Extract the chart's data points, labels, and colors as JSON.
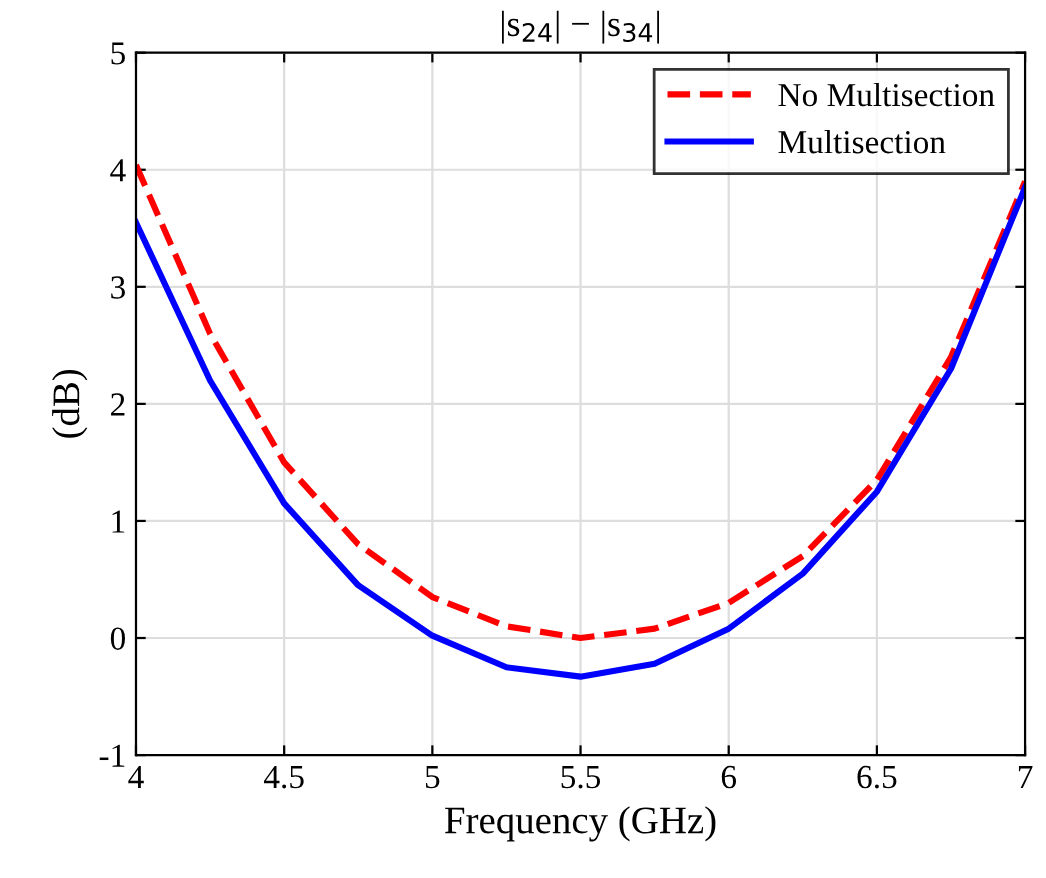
{
  "chart_data": {
    "type": "line",
    "title": "|s$_{24}$| − |s$_{34}$|",
    "xlabel": "Frequency (GHz)",
    "ylabel": "(dB)",
    "x": [
      4,
      4.25,
      4.5,
      4.75,
      5,
      5.25,
      5.5,
      5.75,
      6,
      6.25,
      6.5,
      6.75,
      7
    ],
    "series": [
      {
        "name": "No Multisection",
        "color": "#ff0000",
        "line_style": "dashed",
        "values": [
          4.04,
          2.6,
          1.5,
          0.8,
          0.35,
          0.1,
          0.0,
          0.08,
          0.3,
          0.7,
          1.35,
          2.4,
          3.9
        ]
      },
      {
        "name": "Multisection",
        "color": "#0000ff",
        "line_style": "solid",
        "values": [
          3.55,
          2.2,
          1.15,
          0.45,
          0.02,
          -0.25,
          -0.33,
          -0.22,
          0.08,
          0.55,
          1.25,
          2.3,
          3.85
        ]
      }
    ],
    "xlim": [
      4,
      7
    ],
    "xticks": [
      4,
      4.5,
      5,
      5.5,
      6,
      6.5,
      7
    ],
    "ylim": [
      -1,
      5
    ],
    "yticks": [
      -1,
      0,
      1,
      2,
      3,
      4,
      5
    ],
    "grid": true,
    "legend": "top right",
    "marker": "none"
  }
}
